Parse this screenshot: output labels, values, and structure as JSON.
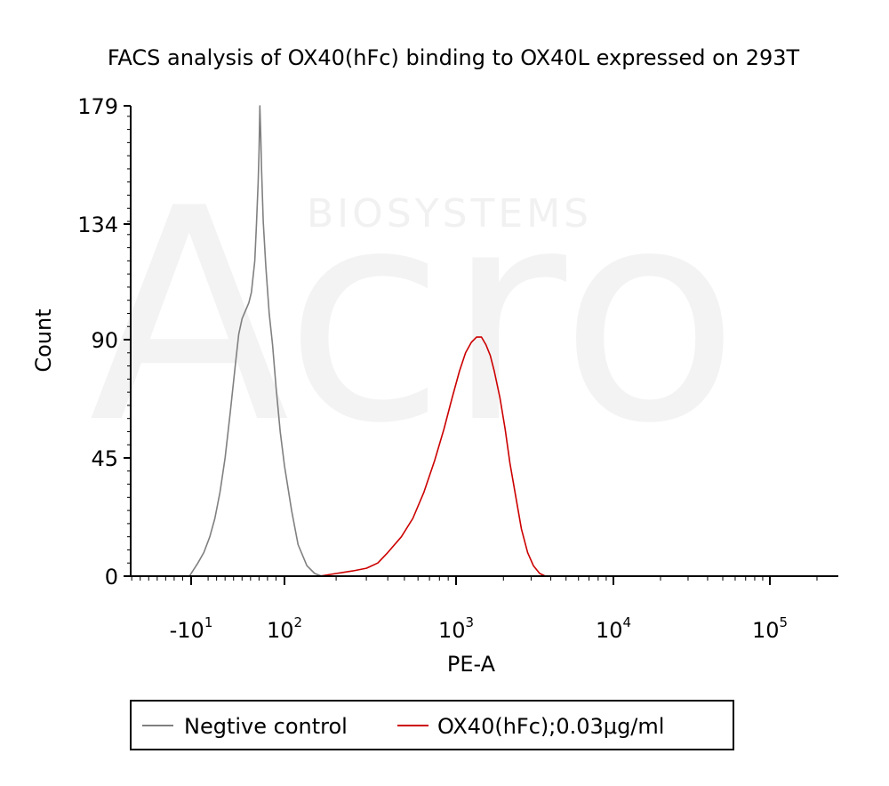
{
  "chart_data": {
    "type": "histogram",
    "title": "FACS analysis of OX40(hFc) binding to OX40L expressed on 293T",
    "xlabel": "PE-A",
    "ylabel": "Count",
    "x_scale": "biexponential",
    "x_ticks": [
      {
        "value": -10,
        "base": "-10",
        "exp": "1"
      },
      {
        "value": 100,
        "base": "10",
        "exp": "2"
      },
      {
        "value": 1000,
        "base": "10",
        "exp": "3"
      },
      {
        "value": 10000,
        "base": "10",
        "exp": "4"
      },
      {
        "value": 100000,
        "base": "10",
        "exp": "5"
      }
    ],
    "ylim": [
      0,
      179
    ],
    "y_ticks": [
      "0",
      "45",
      "90",
      "134",
      "179"
    ],
    "grid": false,
    "legend_position": "bottom",
    "series": [
      {
        "name": "Negtive control",
        "color": "#808080",
        "points": [
          [
            -12,
            0
          ],
          [
            -8,
            2
          ],
          [
            -2,
            5
          ],
          [
            5,
            9
          ],
          [
            12,
            15
          ],
          [
            18,
            22
          ],
          [
            24,
            32
          ],
          [
            30,
            45
          ],
          [
            36,
            62
          ],
          [
            42,
            80
          ],
          [
            46,
            92
          ],
          [
            50,
            98
          ],
          [
            54,
            101
          ],
          [
            58,
            104
          ],
          [
            61,
            108
          ],
          [
            63,
            114
          ],
          [
            65,
            120
          ],
          [
            67,
            134
          ],
          [
            69,
            150
          ],
          [
            70,
            162
          ],
          [
            71,
            179
          ],
          [
            72,
            168
          ],
          [
            73,
            155
          ],
          [
            75,
            135
          ],
          [
            78,
            118
          ],
          [
            82,
            100
          ],
          [
            86,
            88
          ],
          [
            90,
            72
          ],
          [
            95,
            55
          ],
          [
            100,
            42
          ],
          [
            110,
            25
          ],
          [
            120,
            12
          ],
          [
            135,
            4
          ],
          [
            150,
            1
          ],
          [
            165,
            0
          ]
        ]
      },
      {
        "name": "OX40(hFc);0.03μg/ml",
        "color": "#cc0000",
        "points": [
          [
            160,
            0
          ],
          [
            200,
            1
          ],
          [
            250,
            2
          ],
          [
            300,
            3
          ],
          [
            350,
            5
          ],
          [
            400,
            9
          ],
          [
            480,
            15
          ],
          [
            560,
            22
          ],
          [
            650,
            32
          ],
          [
            750,
            44
          ],
          [
            850,
            56
          ],
          [
            950,
            68
          ],
          [
            1050,
            78
          ],
          [
            1150,
            85
          ],
          [
            1250,
            89
          ],
          [
            1350,
            91
          ],
          [
            1450,
            91
          ],
          [
            1550,
            88
          ],
          [
            1650,
            84
          ],
          [
            1750,
            78
          ],
          [
            1900,
            68
          ],
          [
            2050,
            56
          ],
          [
            2200,
            43
          ],
          [
            2400,
            30
          ],
          [
            2600,
            18
          ],
          [
            2850,
            9
          ],
          [
            3100,
            4
          ],
          [
            3400,
            1
          ],
          [
            3700,
            0
          ]
        ]
      }
    ]
  },
  "watermark": {
    "text": "BIOSYSTEMS",
    "logo": "Acro"
  }
}
